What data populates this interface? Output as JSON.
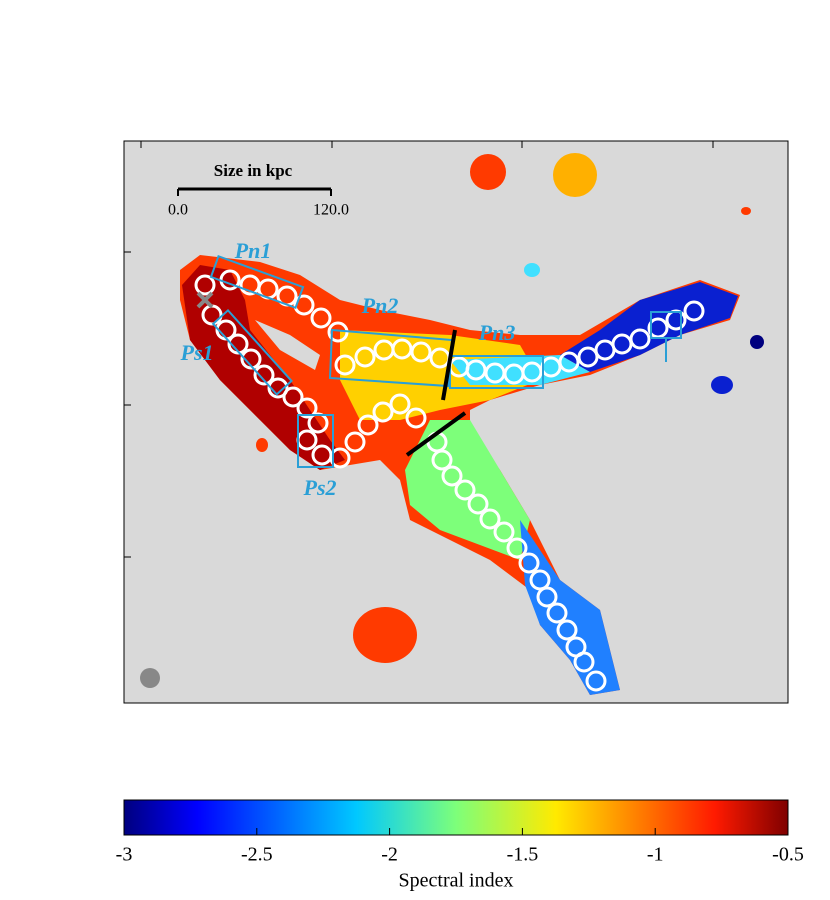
{
  "chart_data": {
    "type": "image",
    "scale_bar": {
      "title": "Size in kpc",
      "ticks": [
        {
          "value": 0,
          "label": "0.0"
        },
        {
          "value": 120,
          "label": "120.0"
        }
      ]
    },
    "regions": [
      "Pn1",
      "Pn2",
      "Pn3",
      "Ps1",
      "Ps2"
    ],
    "colorbar": {
      "label": "Spectral index",
      "lim": [
        -3,
        -0.5
      ],
      "ticks": [
        -3,
        -2.5,
        -2,
        -1.5,
        -1,
        -0.5
      ],
      "colormap": "jet"
    }
  }
}
